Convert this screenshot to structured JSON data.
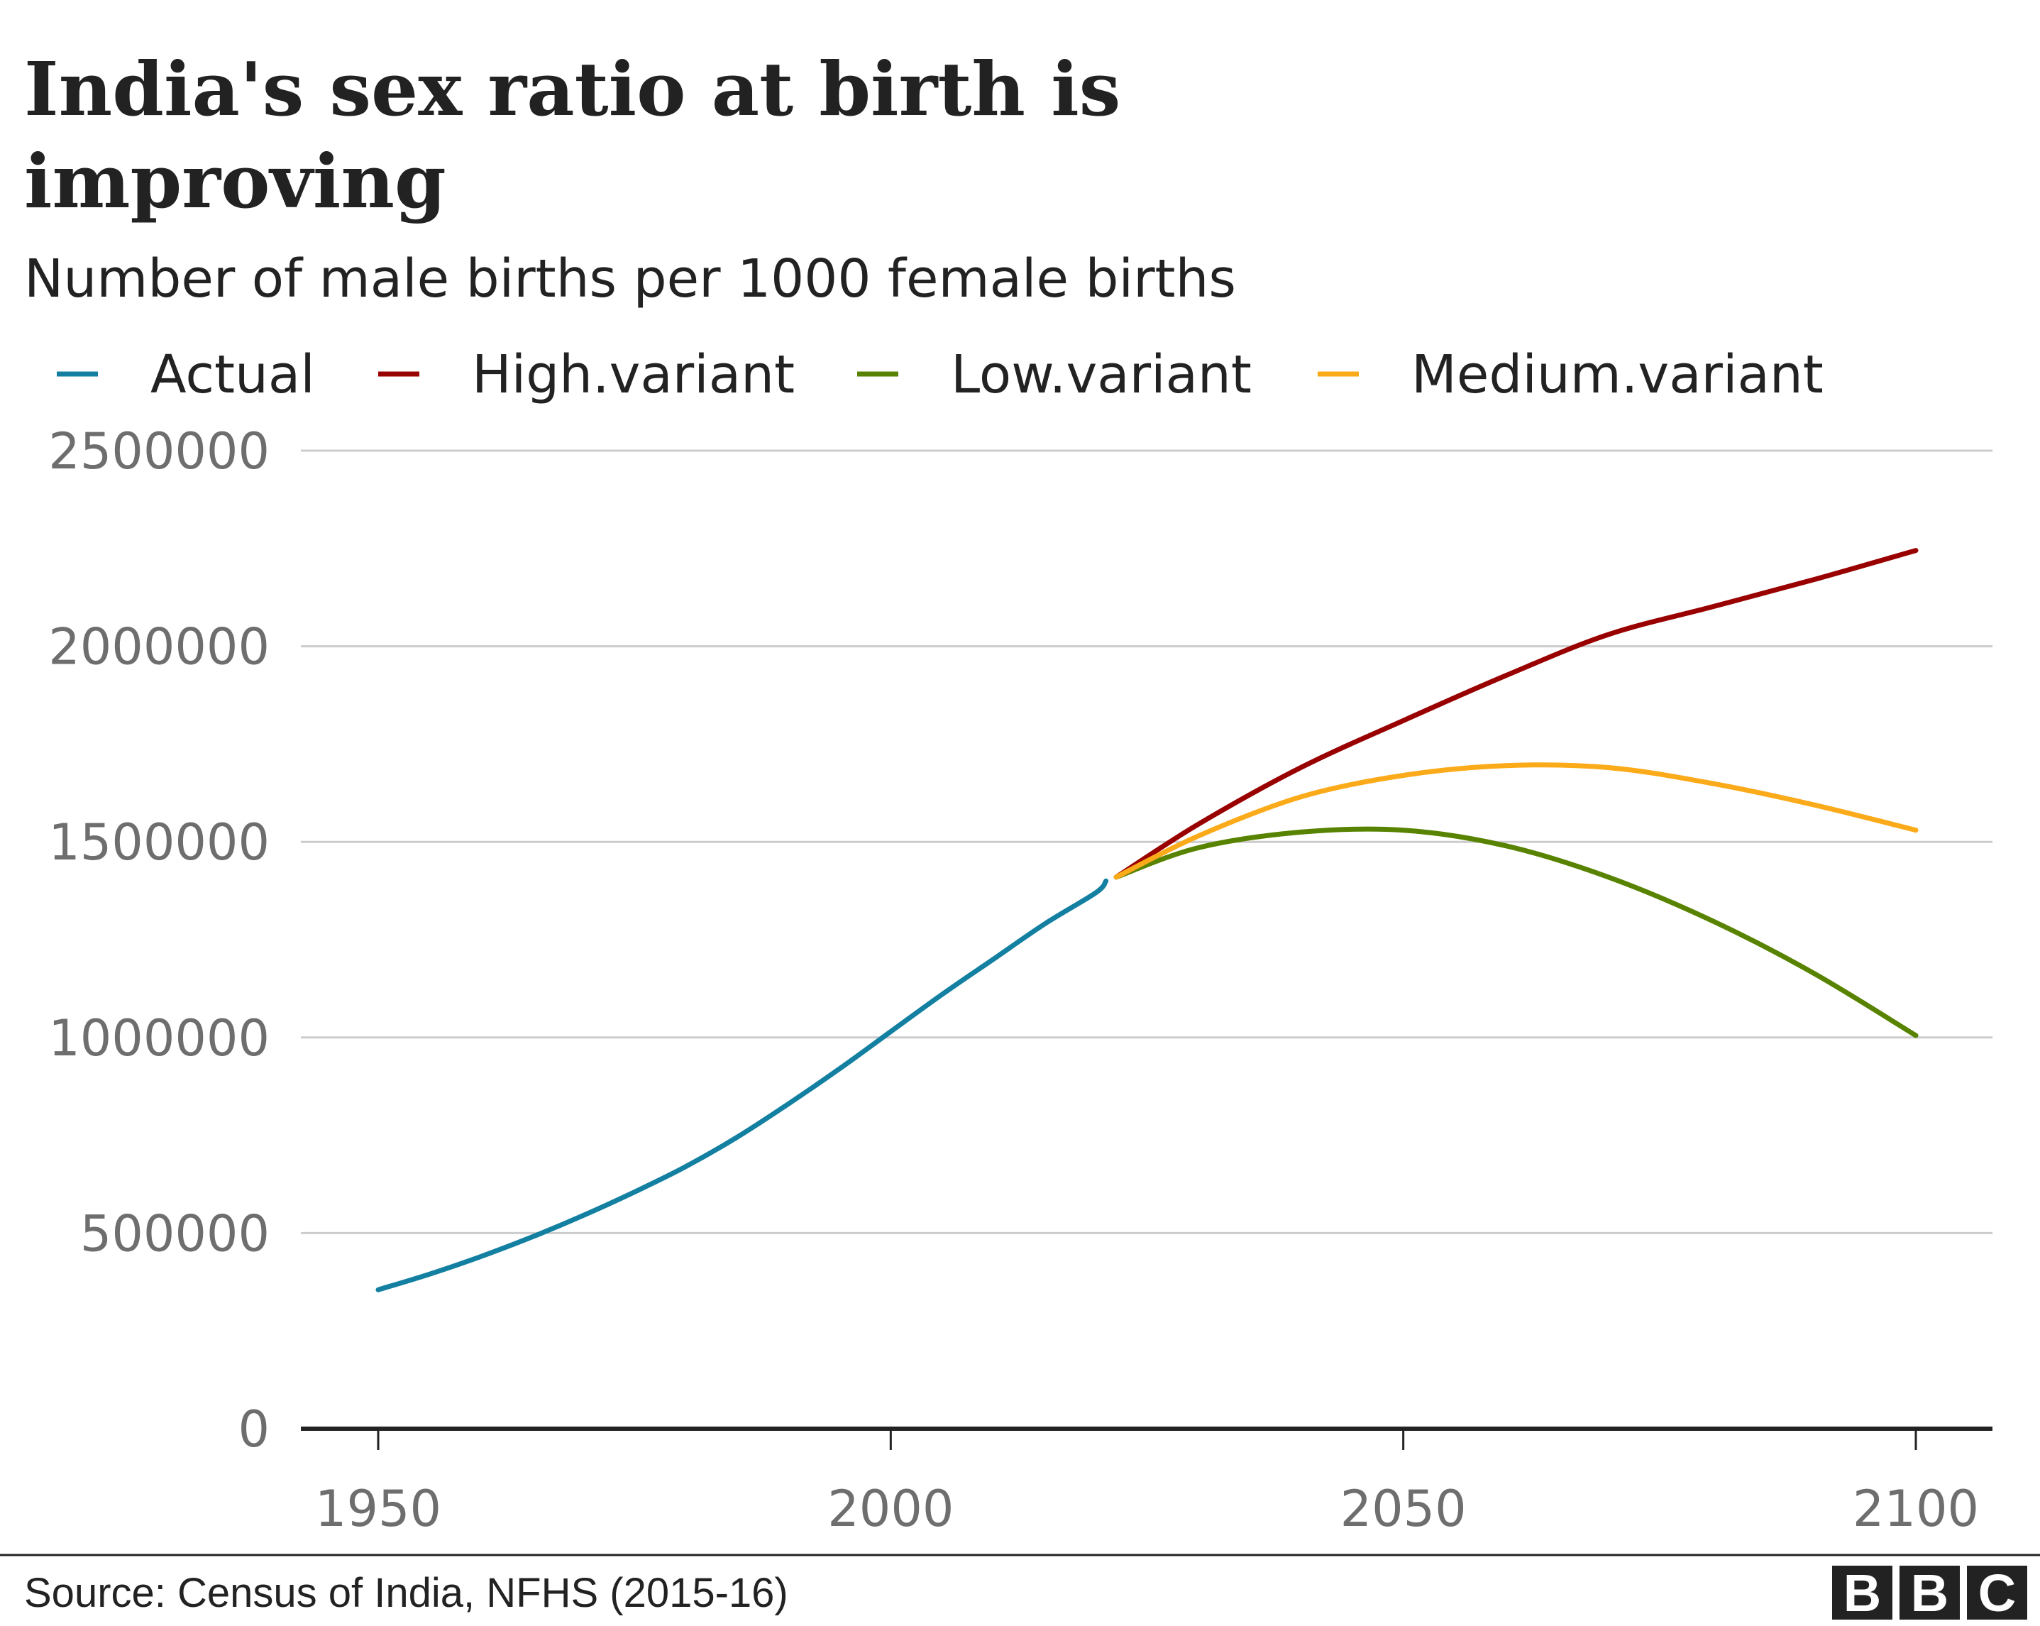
{
  "chart_data": {
    "type": "line",
    "title_lines": [
      "India's sex ratio at birth is",
      "improving"
    ],
    "subtitle": "Number of male births per 1000 female births",
    "legend_position": "top-left",
    "grid": true,
    "xlim": [
      1950,
      2100
    ],
    "ylim": [
      0,
      2500000
    ],
    "x_ticks": [
      1950,
      2000,
      2050,
      2100
    ],
    "y_ticks": [
      0,
      500000,
      1000000,
      1500000,
      2000000,
      2500000
    ],
    "series": [
      {
        "name": "Actual",
        "color": "#1380a1",
        "x": [
          1950,
          1955,
          1960,
          1965,
          1970,
          1975,
          1980,
          1985,
          1990,
          1995,
          2000,
          2005,
          2010,
          2015,
          2020,
          2021
        ],
        "values": [
          355000,
          395000,
          440000,
          490000,
          545000,
          605000,
          670000,
          745000,
          830000,
          920000,
          1015000,
          1110000,
          1200000,
          1290000,
          1370000,
          1400000
        ]
      },
      {
        "name": "High.variant",
        "color": "#990000",
        "x": [
          2022,
          2030,
          2040,
          2050,
          2060,
          2070,
          2080,
          2090,
          2100
        ],
        "values": [
          1410000,
          1545000,
          1690000,
          1810000,
          1925000,
          2030000,
          2100000,
          2170000,
          2245000
        ]
      },
      {
        "name": "Low.variant",
        "color": "#588300",
        "x": [
          2022,
          2030,
          2040,
          2050,
          2060,
          2070,
          2080,
          2090,
          2100
        ],
        "values": [
          1410000,
          1485000,
          1525000,
          1530000,
          1490000,
          1410000,
          1300000,
          1165000,
          1005000
        ]
      },
      {
        "name": "Medium.variant",
        "color": "#fbaa19",
        "x": [
          2022,
          2030,
          2040,
          2050,
          2060,
          2070,
          2080,
          2090,
          2100
        ],
        "values": [
          1410000,
          1515000,
          1615000,
          1670000,
          1695000,
          1690000,
          1650000,
          1595000,
          1530000
        ]
      }
    ],
    "source": "Source: Census of India, NFHS (2015-16)",
    "logo_letters": [
      "B",
      "B",
      "C"
    ]
  }
}
